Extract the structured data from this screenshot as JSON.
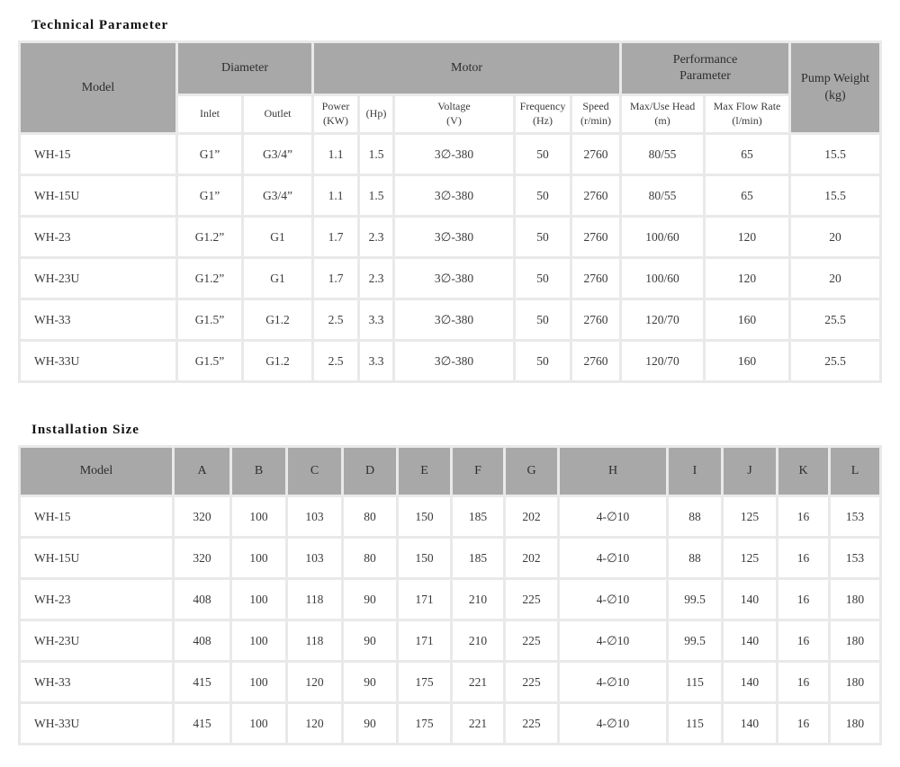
{
  "colors": {
    "header_bg": "#a8a8a8",
    "grid": "#e9e9e9",
    "cell_bg": "#ffffff",
    "text": "#3a3a3a",
    "title_text": "#111111"
  },
  "technical_parameter": {
    "title": "Technical Parameter",
    "header": {
      "model": "Model",
      "diameter": "Diameter",
      "motor": "Motor",
      "performance": "Performance\nParameter",
      "pump_weight": "Pump Weight\n(kg)",
      "sub": [
        "Inlet",
        "Outlet",
        "Power\n(KW)",
        "(Hp)",
        "Voltage\n(V)",
        "Frequency\n(Hz)",
        "Speed\n(r/min)",
        "Max/Use Head\n(m)",
        "Max Flow Rate\n(l/min)"
      ]
    },
    "rows": [
      [
        "WH-15",
        "G1”",
        "G3/4”",
        "1.1",
        "1.5",
        "3∅-380",
        "50",
        "2760",
        "80/55",
        "65",
        "15.5"
      ],
      [
        "WH-15U",
        "G1”",
        "G3/4”",
        "1.1",
        "1.5",
        "3∅-380",
        "50",
        "2760",
        "80/55",
        "65",
        "15.5"
      ],
      [
        "WH-23",
        "G1.2”",
        "G1",
        "1.7",
        "2.3",
        "3∅-380",
        "50",
        "2760",
        "100/60",
        "120",
        "20"
      ],
      [
        "WH-23U",
        "G1.2”",
        "G1",
        "1.7",
        "2.3",
        "3∅-380",
        "50",
        "2760",
        "100/60",
        "120",
        "20"
      ],
      [
        "WH-33",
        "G1.5”",
        "G1.2",
        "2.5",
        "3.3",
        "3∅-380",
        "50",
        "2760",
        "120/70",
        "160",
        "25.5"
      ],
      [
        "WH-33U",
        "G1.5”",
        "G1.2",
        "2.5",
        "3.3",
        "3∅-380",
        "50",
        "2760",
        "120/70",
        "160",
        "25.5"
      ]
    ]
  },
  "installation_size": {
    "title": "Installation Size",
    "columns": [
      "Model",
      "A",
      "B",
      "C",
      "D",
      "E",
      "F",
      "G",
      "H",
      "I",
      "J",
      "K",
      "L"
    ],
    "rows": [
      [
        "WH-15",
        "320",
        "100",
        "103",
        "80",
        "150",
        "185",
        "202",
        "4-∅10",
        "88",
        "125",
        "16",
        "153"
      ],
      [
        "WH-15U",
        "320",
        "100",
        "103",
        "80",
        "150",
        "185",
        "202",
        "4-∅10",
        "88",
        "125",
        "16",
        "153"
      ],
      [
        "WH-23",
        "408",
        "100",
        "118",
        "90",
        "171",
        "210",
        "225",
        "4-∅10",
        "99.5",
        "140",
        "16",
        "180"
      ],
      [
        "WH-23U",
        "408",
        "100",
        "118",
        "90",
        "171",
        "210",
        "225",
        "4-∅10",
        "99.5",
        "140",
        "16",
        "180"
      ],
      [
        "WH-33",
        "415",
        "100",
        "120",
        "90",
        "175",
        "221",
        "225",
        "4-∅10",
        "115",
        "140",
        "16",
        "180"
      ],
      [
        "WH-33U",
        "415",
        "100",
        "120",
        "90",
        "175",
        "221",
        "225",
        "4-∅10",
        "115",
        "140",
        "16",
        "180"
      ]
    ]
  }
}
